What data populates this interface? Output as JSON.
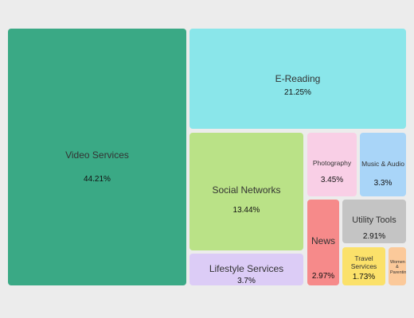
{
  "chart_data": {
    "type": "treemap",
    "tiles": [
      {
        "label": "Video Services",
        "value": "44.21%",
        "percent": 44.21,
        "color": "#3aa985"
      },
      {
        "label": "E-Reading",
        "value": "21.25%",
        "percent": 21.25,
        "color": "#8ae6ea"
      },
      {
        "label": "Social Networks",
        "value": "13.44%",
        "percent": 13.44,
        "color": "#bae287"
      },
      {
        "label": "Lifestyle Services",
        "value": "3.7%",
        "percent": 3.7,
        "color": "#dcccf6"
      },
      {
        "label": "Photography",
        "value": "3.45%",
        "percent": 3.45,
        "color": "#f9cfe6"
      },
      {
        "label": "Music & Audio",
        "value": "3.3%",
        "percent": 3.3,
        "color": "#a9d5f8"
      },
      {
        "label": "News",
        "value": "2.97%",
        "percent": 2.97,
        "color": "#f68a8a"
      },
      {
        "label": "Utility Tools",
        "value": "2.91%",
        "percent": 2.91,
        "color": "#c4c4c4"
      },
      {
        "label": "Travel Services",
        "value": "1.73%",
        "percent": 1.73,
        "color": "#fbe16a"
      },
      {
        "label": "Women & Parenting",
        "value": "",
        "percent": null,
        "color": "#fbc99a"
      }
    ]
  }
}
